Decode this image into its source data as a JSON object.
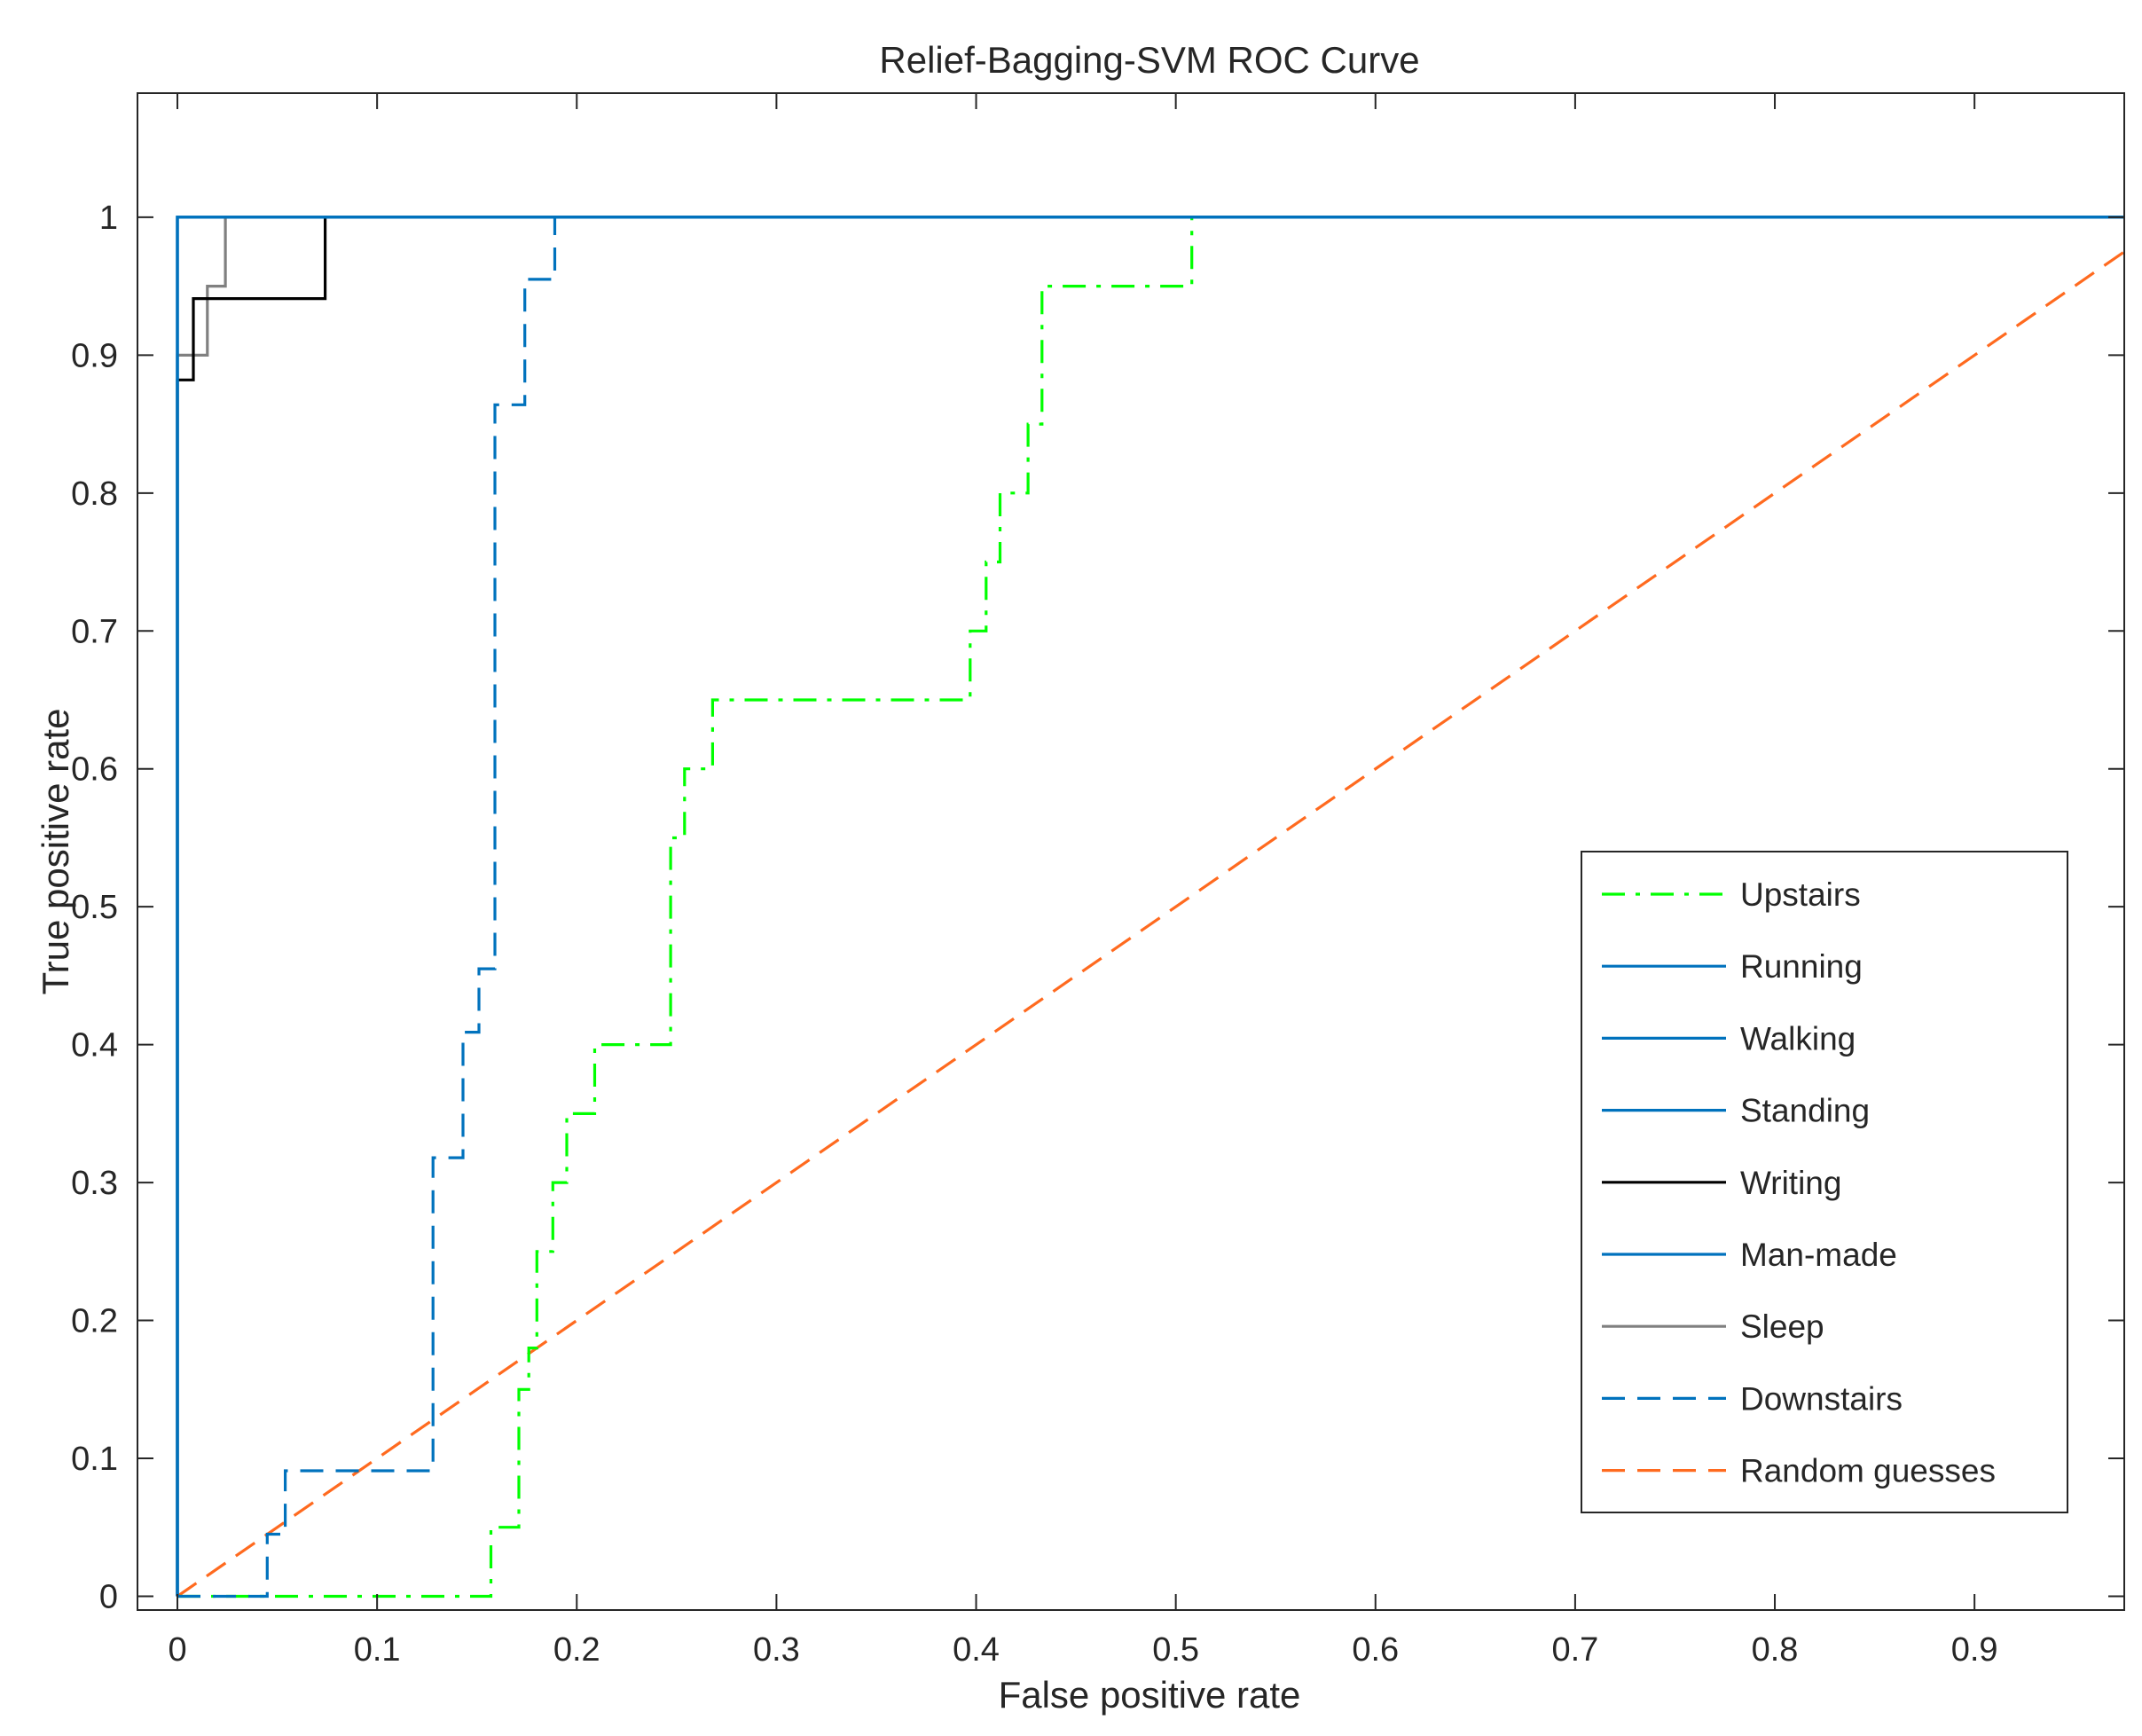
{
  "chart_data": {
    "type": "line",
    "title": "Relief-Bagging-SVM ROC Curve",
    "xlabel": "False positive rate",
    "ylabel": "True positive rate",
    "xlim": [
      -0.02,
      0.975
    ],
    "ylim": [
      -0.01,
      1.09
    ],
    "xticks": [
      "0",
      "0.1",
      "0.2",
      "0.3",
      "0.4",
      "0.5",
      "0.6",
      "0.7",
      "0.8",
      "0.9"
    ],
    "xtick_values": [
      0,
      0.1,
      0.2,
      0.3,
      0.4,
      0.5,
      0.6,
      0.7,
      0.8,
      0.9
    ],
    "yticks": [
      "0",
      "0.1",
      "0.2",
      "0.3",
      "0.4",
      "0.5",
      "0.6",
      "0.7",
      "0.8",
      "0.9",
      "1"
    ],
    "ytick_values": [
      0,
      0.1,
      0.2,
      0.3,
      0.4,
      0.5,
      0.6,
      0.7,
      0.8,
      0.9,
      1
    ],
    "grid": false,
    "legend_position": "bottom-right",
    "series": [
      {
        "name": "Upstairs",
        "color": "#00ff00",
        "style": "dashdot",
        "x": [
          0,
          0.157,
          0.157,
          0.171,
          0.171,
          0.176,
          0.176,
          0.18,
          0.18,
          0.188,
          0.188,
          0.195,
          0.195,
          0.209,
          0.209,
          0.247,
          0.247,
          0.254,
          0.254,
          0.268,
          0.268,
          0.397,
          0.397,
          0.405,
          0.405,
          0.412,
          0.412,
          0.426,
          0.426,
          0.433,
          0.433,
          0.508,
          0.508,
          0.975
        ],
        "y": [
          0,
          0,
          0.05,
          0.05,
          0.15,
          0.15,
          0.18,
          0.18,
          0.25,
          0.25,
          0.3,
          0.3,
          0.35,
          0.35,
          0.4,
          0.4,
          0.55,
          0.55,
          0.6,
          0.6,
          0.65,
          0.65,
          0.7,
          0.7,
          0.75,
          0.75,
          0.8,
          0.8,
          0.85,
          0.85,
          0.95,
          0.95,
          1.0,
          1.0
        ]
      },
      {
        "name": "Running",
        "color": "#0072bd",
        "style": "solid",
        "x": [
          0,
          0,
          0.975
        ],
        "y": [
          0,
          1.0,
          1.0
        ]
      },
      {
        "name": "Walking",
        "color": "#0072bd",
        "style": "solid",
        "x": [
          0,
          0,
          0.975
        ],
        "y": [
          0,
          1.0,
          1.0
        ]
      },
      {
        "name": "Standing",
        "color": "#0072bd",
        "style": "solid",
        "x": [
          0,
          0,
          0.975
        ],
        "y": [
          0,
          1.0,
          1.0
        ]
      },
      {
        "name": "Writing",
        "color": "#000000",
        "style": "solid",
        "x": [
          0,
          0,
          0.008,
          0.008,
          0.074,
          0.074,
          0.975
        ],
        "y": [
          0,
          0.882,
          0.882,
          0.941,
          0.941,
          1.0,
          1.0
        ]
      },
      {
        "name": "Man-made",
        "color": "#0072bd",
        "style": "solid",
        "x": [
          0,
          0,
          0.975
        ],
        "y": [
          0,
          1.0,
          1.0
        ]
      },
      {
        "name": "Sleep",
        "color": "#808080",
        "style": "solid",
        "x": [
          0,
          0,
          0.015,
          0.015,
          0.019,
          0.019,
          0.024,
          0.024,
          0.975
        ],
        "y": [
          0,
          0.9,
          0.9,
          0.95,
          0.95,
          0.95,
          0.95,
          1.0,
          1.0
        ]
      },
      {
        "name": "Downstairs",
        "color": "#0072bd",
        "style": "dashed",
        "x": [
          0,
          0.045,
          0.045,
          0.054,
          0.054,
          0.128,
          0.128,
          0.143,
          0.143,
          0.151,
          0.151,
          0.159,
          0.159,
          0.174,
          0.174,
          0.189,
          0.189,
          0.975
        ],
        "y": [
          0,
          0,
          0.045,
          0.045,
          0.091,
          0.091,
          0.318,
          0.318,
          0.409,
          0.409,
          0.455,
          0.455,
          0.864,
          0.864,
          0.955,
          0.955,
          1.0,
          1.0
        ]
      },
      {
        "name": "Random guesses",
        "color": "#ff6a1f",
        "style": "dashed",
        "x": [
          0,
          0.975
        ],
        "y": [
          0,
          0.975
        ]
      }
    ]
  }
}
